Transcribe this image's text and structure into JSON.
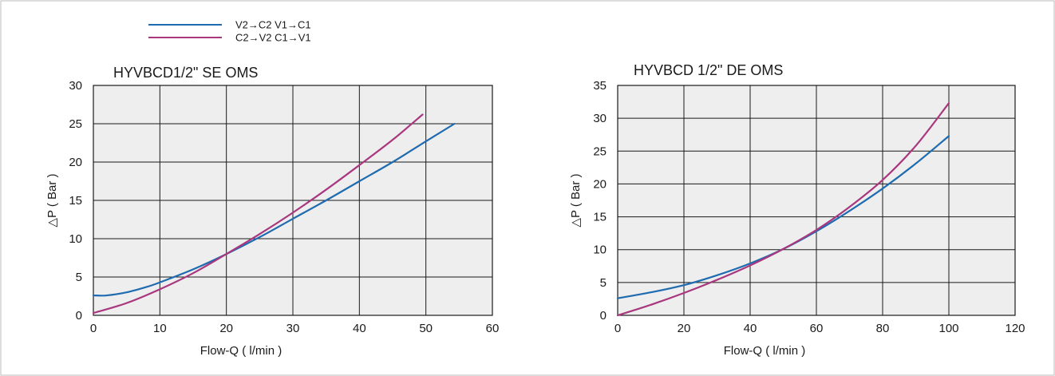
{
  "legend": {
    "items": [
      {
        "label": "V2→C2  V1→C1",
        "color": "#1f6bb0"
      },
      {
        "label": "C2→V2  C1→V1",
        "color": "#a8377e"
      }
    ]
  },
  "colors": {
    "plot_background": "#eeeeee",
    "grid": "#1a1a1a",
    "border": "#bbbbbb"
  },
  "chart_data": [
    {
      "type": "line",
      "title": "HYVBCD1/2\" SE OMS",
      "xlabel": "Flow-Q ( l/min )",
      "ylabel": "△P ( Bar )",
      "xlim": [
        0,
        60
      ],
      "ylim": [
        0,
        30
      ],
      "xticks": [
        "0",
        "10",
        "20",
        "30",
        "40",
        "50",
        "60"
      ],
      "yticks": [
        "0",
        "5",
        "10",
        "15",
        "20",
        "25",
        "30"
      ],
      "grid": true,
      "series": [
        {
          "name": "V2→C2  V1→C1",
          "color": "#1f6bb0",
          "x": [
            0,
            2,
            5,
            8,
            10,
            15,
            20,
            25,
            30,
            35,
            40,
            45,
            50,
            54.3
          ],
          "values": [
            2.6,
            2.6,
            3.0,
            3.7,
            4.3,
            6.0,
            8.0,
            10.2,
            12.6,
            15.0,
            17.5,
            20.0,
            22.7,
            25.0
          ]
        },
        {
          "name": "C2→V2  C1→V1",
          "color": "#a8377e",
          "x": [
            0,
            5,
            10,
            15,
            20,
            25,
            30,
            35,
            40,
            45,
            49.5
          ],
          "values": [
            0.3,
            1.6,
            3.4,
            5.5,
            8.0,
            10.6,
            13.4,
            16.4,
            19.6,
            22.9,
            26.2
          ]
        }
      ]
    },
    {
      "type": "line",
      "title": "HYVBCD  1/2\" DE OMS",
      "xlabel": "Flow-Q ( l/min )",
      "ylabel": "△P ( Bar )",
      "xlim": [
        0,
        120
      ],
      "ylim": [
        0,
        35
      ],
      "xticks": [
        "0",
        "20",
        "40",
        "60",
        "80",
        "100",
        "120"
      ],
      "yticks": [
        "0",
        "5",
        "10",
        "15",
        "20",
        "25",
        "30",
        "35"
      ],
      "grid": true,
      "series": [
        {
          "name": "V2→C2  V1→C1",
          "color": "#1f6bb0",
          "x": [
            0,
            10,
            20,
            30,
            40,
            50,
            60,
            70,
            80,
            90,
            100
          ],
          "values": [
            2.6,
            3.5,
            4.6,
            6.1,
            7.9,
            10.1,
            12.8,
            15.9,
            19.3,
            23.1,
            27.3
          ]
        },
        {
          "name": "C2→V2  C1→V1",
          "color": "#a8377e",
          "x": [
            0,
            10,
            20,
            30,
            40,
            50,
            60,
            70,
            80,
            90,
            100
          ],
          "values": [
            0,
            1.6,
            3.4,
            5.4,
            7.6,
            10.1,
            13.0,
            16.5,
            20.6,
            25.8,
            32.3
          ]
        }
      ]
    }
  ]
}
